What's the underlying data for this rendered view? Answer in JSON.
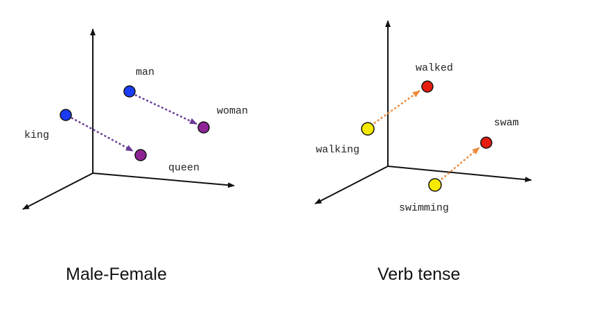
{
  "colors": {
    "blue_point": "#1a3cf5",
    "purple_point": "#8e2496",
    "yellow_point": "#f5ea00",
    "red_point": "#e61c10",
    "purple_arrow": "#6a3c98",
    "orange_arrow": "#ec8a3a",
    "axis": "#111111"
  },
  "left_panel": {
    "caption": "Male-Female",
    "words": {
      "man": "man",
      "woman": "woman",
      "king": "king",
      "queen": "queen"
    }
  },
  "right_panel": {
    "caption": "Verb tense",
    "words": {
      "walked": "walked",
      "walking": "walking",
      "swam": "swam",
      "swimming": "swimming"
    }
  }
}
